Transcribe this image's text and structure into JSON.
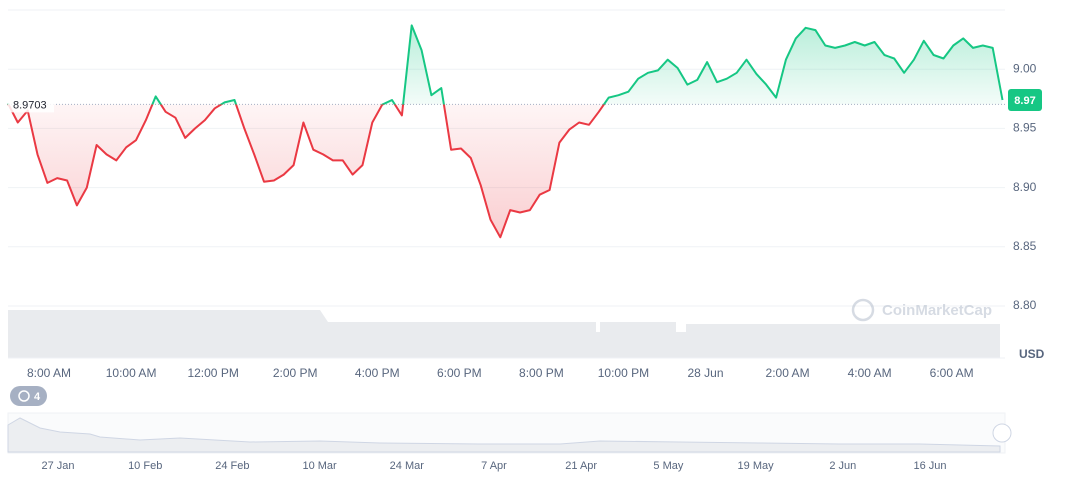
{
  "chart_data": {
    "type": "line",
    "x": [
      7,
      7.24,
      7.48,
      7.72,
      7.96,
      8.2,
      8.44,
      8.68,
      8.92,
      9.16,
      9.4,
      9.64,
      9.88,
      10.12,
      10.36,
      10.6,
      10.84,
      11.08,
      11.32,
      11.56,
      11.8,
      12.04,
      12.28,
      12.52,
      12.76,
      13,
      13.24,
      13.48,
      13.72,
      13.96,
      14.2,
      14.44,
      14.68,
      14.92,
      15.16,
      15.4,
      15.64,
      15.88,
      16.12,
      16.36,
      16.6,
      16.84,
      17.08,
      17.32,
      17.56,
      17.8,
      18.04,
      18.28,
      18.52,
      18.76,
      19,
      19.24,
      19.48,
      19.72,
      19.96,
      20.2,
      20.44,
      20.68,
      20.92,
      21.16,
      21.4,
      21.64,
      21.88,
      22.12,
      22.36,
      22.6,
      22.84,
      23.08,
      23.32,
      23.56,
      23.8,
      24.04,
      24.28,
      24.52,
      24.76,
      25,
      25.24,
      25.48,
      25.72,
      25.96,
      26.2,
      26.44,
      26.68,
      26.92,
      27.16,
      27.4,
      27.64,
      27.88,
      28.12,
      28.36,
      28.6,
      28.84,
      29.08,
      29.32,
      29.56,
      29.8,
      30.04,
      30.28,
      30.52,
      30.76,
      31,
      31.24
    ],
    "series": [
      {
        "name": "USD",
        "color": "#16c784",
        "color_below": "#ea3943",
        "values": [
          8.971,
          8.955,
          8.965,
          8.928,
          8.904,
          8.908,
          8.906,
          8.885,
          8.9,
          8.936,
          8.928,
          8.923,
          8.934,
          8.94,
          8.957,
          8.977,
          8.964,
          8.959,
          8.942,
          8.95,
          8.957,
          8.967,
          8.972,
          8.974,
          8.95,
          8.928,
          8.905,
          8.906,
          8.911,
          8.919,
          8.955,
          8.932,
          8.928,
          8.923,
          8.923,
          8.911,
          8.919,
          8.955,
          8.97,
          8.974,
          8.961,
          9.037,
          9.016,
          8.978,
          8.984,
          8.932,
          8.933,
          8.925,
          8.902,
          8.873,
          8.858,
          8.881,
          8.879,
          8.881,
          8.894,
          8.898,
          8.938,
          8.949,
          8.955,
          8.953,
          8.964,
          8.976,
          8.978,
          8.981,
          8.992,
          8.997,
          8.999,
          9.008,
          9.001,
          8.987,
          8.991,
          9.006,
          8.989,
          8.992,
          8.997,
          9.008,
          8.996,
          8.987,
          8.976,
          9.008,
          9.026,
          9.035,
          9.033,
          9.02,
          9.018,
          9.02,
          9.023,
          9.02,
          9.023,
          9.012,
          9.009,
          8.997,
          9.008,
          9.024,
          9.012,
          9.009,
          9.02,
          9.026,
          9.018,
          9.02,
          9.018,
          8.974
        ],
        "last_value_label": "8.97"
      }
    ],
    "baseline": 8.9703,
    "xlim": [
      7,
      31.3
    ],
    "ylim": [
      8.8,
      9.05
    ],
    "xticks": [
      {
        "value": 8,
        "label": "8:00 AM"
      },
      {
        "value": 10,
        "label": "10:00 AM"
      },
      {
        "value": 12,
        "label": "12:00 PM"
      },
      {
        "value": 14,
        "label": "2:00 PM"
      },
      {
        "value": 16,
        "label": "4:00 PM"
      },
      {
        "value": 18,
        "label": "6:00 PM"
      },
      {
        "value": 20,
        "label": "8:00 PM"
      },
      {
        "value": 22,
        "label": "10:00 PM"
      },
      {
        "value": 24,
        "label": "28 Jun"
      },
      {
        "value": 26,
        "label": "2:00 AM"
      },
      {
        "value": 28,
        "label": "4:00 AM"
      },
      {
        "value": 30,
        "label": "6:00 AM"
      }
    ],
    "yticks": [
      {
        "value": 8.8,
        "label": "8.80"
      },
      8.85,
      {
        "value": 8.9,
        "label": "8.90"
      },
      8.95,
      {
        "value": 9,
        "label": "9.00"
      }
    ],
    "y_unit": "USD",
    "grid": true,
    "watermark": "CoinMarketCap"
  },
  "history_badge": "4",
  "navigator": {
    "labels": [
      "27 Jan",
      "10 Feb",
      "24 Feb",
      "10 Mar",
      "24 Mar",
      "7 Apr",
      "21 Apr",
      "5 May",
      "19 May",
      "2 Jun",
      "16 Jun"
    ]
  }
}
